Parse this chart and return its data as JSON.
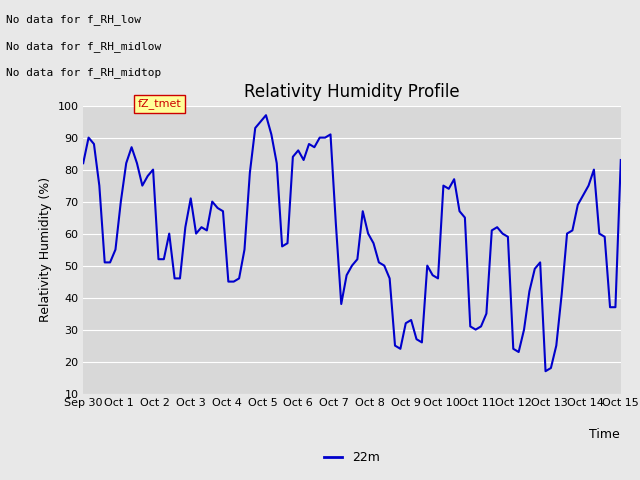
{
  "title": "Relativity Humidity Profile",
  "xlabel": "Time",
  "ylabel": "Relativity Humidity (%)",
  "ylim": [
    10,
    100
  ],
  "yticks": [
    10,
    20,
    30,
    40,
    50,
    60,
    70,
    80,
    90,
    100
  ],
  "line_color": "#0000cc",
  "line_width": 1.5,
  "fig_bg_color": "#e8e8e8",
  "plot_bg_color": "#d8d8d8",
  "legend_label": "22m",
  "legend_color": "#0000cc",
  "no_data_texts": [
    "No data for f_RH_low",
    "No data for f̲RH̲midlow",
    "No data for f_RH_midtop"
  ],
  "fz_tmet_label": "fZ_tmet",
  "fz_tmet_color": "#cc0000",
  "fz_tmet_bg": "#ffff99",
  "x_tick_labels": [
    "Sep 30",
    "Oct 1",
    "Oct 2",
    "Oct 3",
    "Oct 4",
    "Oct 5",
    "Oct 6",
    "Oct 7",
    "Oct 8",
    "Oct 9",
    "Oct 10",
    "Oct 11",
    "Oct 12",
    "Oct 13",
    "Oct 14",
    "Oct 15"
  ],
  "x_positions": [
    0,
    1,
    2,
    3,
    4,
    5,
    6,
    7,
    8,
    9,
    10,
    11,
    12,
    13,
    14,
    15
  ],
  "y_values": [
    82,
    90,
    88,
    75,
    51,
    51,
    55,
    70,
    82,
    87,
    82,
    75,
    78,
    80,
    52,
    52,
    60,
    46,
    46,
    62,
    71,
    60,
    62,
    61,
    70,
    68,
    67,
    45,
    45,
    46,
    55,
    79,
    93,
    95,
    97,
    91,
    82,
    56,
    57,
    84,
    86,
    83,
    88,
    87,
    90,
    90,
    91,
    63,
    38,
    47,
    50,
    52,
    67,
    60,
    57,
    51,
    50,
    46,
    25,
    24,
    32,
    33,
    27,
    26,
    50,
    47,
    46,
    75,
    74,
    77,
    67,
    65,
    31,
    30,
    31,
    35,
    61,
    62,
    60,
    59,
    24,
    23,
    30,
    42,
    49,
    51,
    17,
    18,
    25,
    41,
    60,
    61,
    69,
    72,
    75,
    80,
    60,
    59,
    37,
    37,
    83
  ],
  "title_fontsize": 12,
  "axis_label_fontsize": 9,
  "tick_fontsize": 8,
  "nodata_fontsize": 8,
  "legend_fontsize": 9,
  "fztmet_fontsize": 8
}
